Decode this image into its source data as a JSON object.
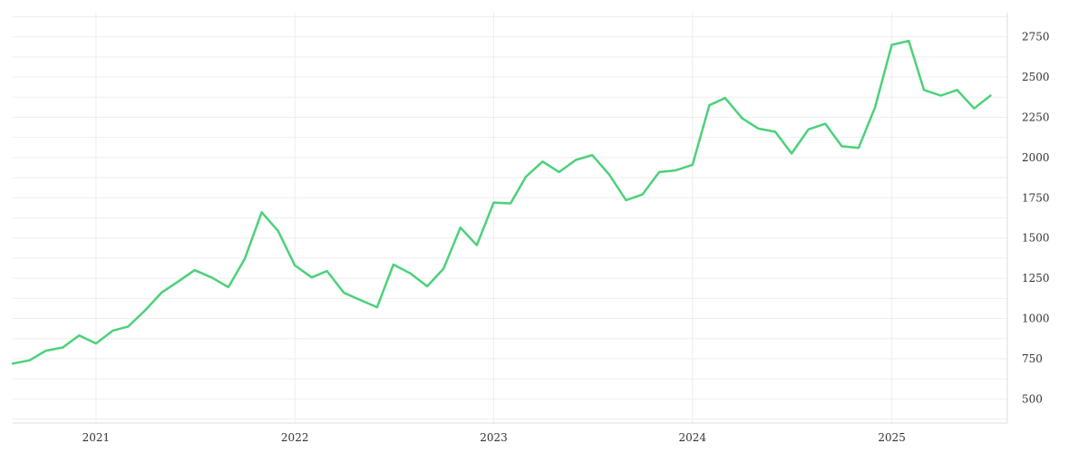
{
  "chart_data": {
    "type": "line",
    "title": "",
    "xlabel": "",
    "ylabel": "",
    "x_axis": {
      "kind": "date",
      "range": [
        "2020-08-01",
        "2025-08-01"
      ],
      "tick_labels": [
        "2021",
        "2022",
        "2023",
        "2024",
        "2025"
      ],
      "tick_dates": [
        "2021-01-01",
        "2022-01-01",
        "2023-01-01",
        "2024-01-01",
        "2025-01-01"
      ]
    },
    "y_axis": {
      "position": "right",
      "range": [
        350,
        2900
      ],
      "tick_values": [
        500,
        750,
        1000,
        1250,
        1500,
        1750,
        2000,
        2250,
        2500,
        2750
      ]
    },
    "grid": true,
    "legend": "none",
    "series": [
      {
        "color": "#4cd17a",
        "x": [
          "2020-08-01",
          "2020-09-01",
          "2020-10-01",
          "2020-11-01",
          "2020-12-01",
          "2021-01-01",
          "2021-02-01",
          "2021-03-01",
          "2021-04-01",
          "2021-05-01",
          "2021-06-01",
          "2021-07-01",
          "2021-08-01",
          "2021-09-01",
          "2021-10-01",
          "2021-11-01",
          "2021-12-01",
          "2022-01-01",
          "2022-02-01",
          "2022-03-01",
          "2022-04-01",
          "2022-05-01",
          "2022-06-01",
          "2022-07-01",
          "2022-08-01",
          "2022-09-01",
          "2022-10-01",
          "2022-11-01",
          "2022-12-01",
          "2023-01-01",
          "2023-02-01",
          "2023-03-01",
          "2023-04-01",
          "2023-05-01",
          "2023-06-01",
          "2023-07-01",
          "2023-08-01",
          "2023-09-01",
          "2023-10-01",
          "2023-11-01",
          "2023-12-01",
          "2024-01-01",
          "2024-02-01",
          "2024-03-01",
          "2024-04-01",
          "2024-05-01",
          "2024-06-01",
          "2024-07-01",
          "2024-08-01",
          "2024-09-01",
          "2024-10-01",
          "2024-11-01",
          "2024-12-01",
          "2025-01-01",
          "2025-02-01",
          "2025-03-01",
          "2025-04-01",
          "2025-05-01",
          "2025-06-01",
          "2025-07-01"
        ],
        "y": [
          720,
          740,
          800,
          820,
          895,
          845,
          925,
          950,
          1050,
          1160,
          1230,
          1300,
          1255,
          1195,
          1370,
          1660,
          1545,
          1330,
          1255,
          1295,
          1160,
          1115,
          1070,
          1335,
          1280,
          1200,
          1310,
          1565,
          1455,
          1720,
          1715,
          1880,
          1975,
          1910,
          1985,
          2015,
          1895,
          1735,
          1770,
          1910,
          1920,
          1955,
          2325,
          2370,
          2245,
          2180,
          2160,
          2025,
          2175,
          2210,
          2070,
          2060,
          2310,
          2700,
          2725,
          2420,
          2385,
          2420,
          2305,
          2385
        ]
      }
    ]
  }
}
